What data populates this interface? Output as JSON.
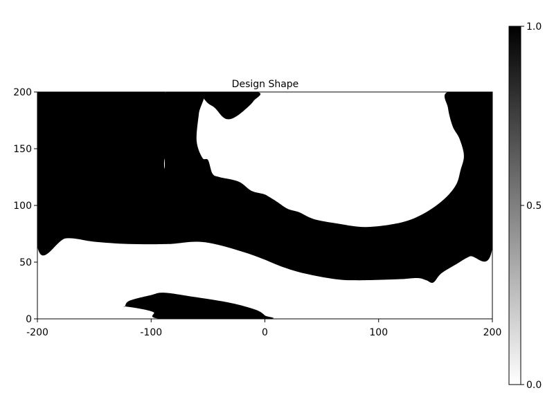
{
  "chart_data": {
    "type": "heatmap",
    "title": "Design Shape",
    "xlabel": "",
    "ylabel": "",
    "xlim": [
      -200,
      200
    ],
    "ylim": [
      0,
      200
    ],
    "x_ticks": [
      -200,
      -100,
      0,
      100,
      200
    ],
    "y_ticks": [
      0,
      50,
      100,
      150,
      200
    ],
    "grid": false,
    "colormap": {
      "low_color": "#ffffff",
      "high_color": "#000000"
    },
    "colorbar": {
      "range": [
        0.0,
        1.0
      ],
      "ticks": [
        0.0,
        0.5,
        1.0
      ],
      "tick_labels": [
        "0.0",
        "0.5",
        "1.0"
      ],
      "placement": "right"
    },
    "material_value": 1.0,
    "void_value": 0.0,
    "material_regions": [
      {
        "name": "main-material",
        "value": 1.0,
        "boundary": [
          [
            -200,
            200
          ],
          [
            -96,
            200
          ],
          [
            -89,
            199
          ],
          [
            -87,
            187
          ],
          [
            -91,
            176
          ],
          [
            -100,
            165
          ],
          [
            -114,
            151
          ],
          [
            -126,
            150
          ],
          [
            -140,
            155
          ],
          [
            -145,
            166
          ],
          [
            -141,
            176
          ],
          [
            -128,
            186
          ],
          [
            -117,
            192
          ],
          [
            -110,
            196
          ],
          [
            -106,
            200
          ],
          [
            -88,
            200
          ],
          [
            -87,
            187
          ],
          [
            -79,
            178
          ],
          [
            -76,
            167
          ],
          [
            -80,
            154
          ],
          [
            -88,
            142
          ],
          [
            -88,
            136
          ],
          [
            -87,
            200
          ],
          [
            -55,
            200
          ],
          [
            -58,
            181
          ],
          [
            -60,
            157
          ],
          [
            -55,
            142
          ],
          [
            -50,
            140
          ],
          [
            -46,
            128
          ],
          [
            -40,
            125
          ],
          [
            -23,
            121
          ],
          [
            -12,
            113
          ],
          [
            -1,
            110
          ],
          [
            3,
            108
          ],
          [
            11,
            103
          ],
          [
            20,
            97
          ],
          [
            30,
            94
          ],
          [
            43,
            88
          ],
          [
            64,
            84
          ],
          [
            89,
            81
          ],
          [
            120,
            85
          ],
          [
            140,
            93
          ],
          [
            157,
            105
          ],
          [
            168,
            118
          ],
          [
            172,
            131
          ],
          [
            175,
            144
          ],
          [
            171,
            159
          ],
          [
            165,
            170
          ],
          [
            161,
            186
          ],
          [
            161,
            200
          ],
          [
            200,
            200
          ],
          [
            200,
            63
          ],
          [
            180,
            55
          ],
          [
            168,
            48
          ],
          [
            155,
            40
          ],
          [
            148,
            32
          ],
          [
            142,
            34
          ],
          [
            134,
            36
          ],
          [
            118,
            35
          ],
          [
            82,
            34
          ],
          [
            62,
            35
          ],
          [
            35,
            40
          ],
          [
            15,
            46
          ],
          [
            -10,
            56
          ],
          [
            -40,
            65
          ],
          [
            -60,
            68
          ],
          [
            -85,
            66
          ],
          [
            -120,
            66
          ],
          [
            -150,
            68
          ],
          [
            -175,
            71
          ],
          [
            -200,
            64
          ]
        ]
      },
      {
        "name": "top-blob",
        "value": 1.0,
        "boundary": [
          [
            -57,
            200
          ],
          [
            -7,
            200
          ],
          [
            -10,
            192
          ],
          [
            -18,
            184
          ],
          [
            -26,
            178
          ],
          [
            -32,
            176
          ],
          [
            -37,
            178
          ],
          [
            -44,
            186
          ],
          [
            -50,
            190
          ],
          [
            -55,
            196
          ]
        ]
      },
      {
        "name": "lower-strut",
        "value": 1.0,
        "boundary": [
          [
            -123,
            11
          ],
          [
            -119,
            16
          ],
          [
            -100,
            21
          ],
          [
            -88,
            23
          ],
          [
            -60,
            19
          ],
          [
            -30,
            14
          ],
          [
            -8,
            8
          ],
          [
            0,
            3
          ],
          [
            1,
            0
          ],
          [
            -90,
            0
          ],
          [
            -98,
            6
          ],
          [
            -110,
            9
          ],
          [
            -123,
            11
          ]
        ]
      }
    ]
  }
}
